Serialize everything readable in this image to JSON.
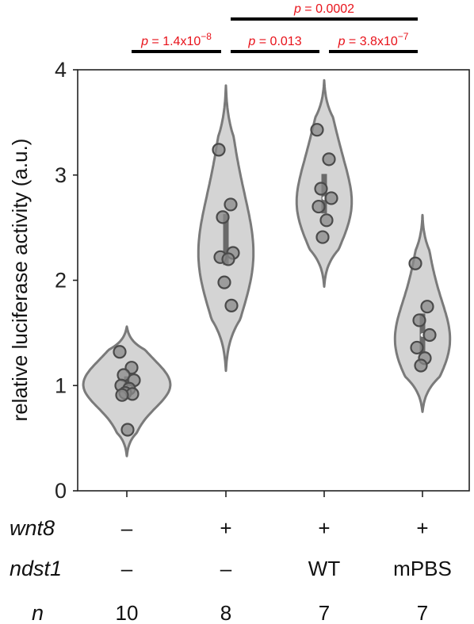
{
  "chart_data": {
    "type": "violin",
    "ylabel": "relative luciferase activity (a.u.)",
    "ylim": [
      0,
      4
    ],
    "yticks": [
      0,
      1,
      2,
      3,
      4
    ],
    "groups": [
      {
        "wnt8": "–",
        "ndst1": "–",
        "n": "10",
        "violin_range": [
          0.33,
          1.56
        ],
        "peak": 1.0,
        "points": [
          1.32,
          1.17,
          1.1,
          1.05,
          1.0,
          0.97,
          0.93,
          0.92,
          0.91,
          0.58
        ]
      },
      {
        "wnt8": "+",
        "ndst1": "–",
        "n": "8",
        "violin_range": [
          1.14,
          3.85
        ],
        "peak": 2.2,
        "points": [
          3.24,
          2.72,
          2.6,
          2.26,
          2.22,
          2.2,
          1.98,
          1.76
        ]
      },
      {
        "wnt8": "+",
        "ndst1": "WT",
        "n": "7",
        "violin_range": [
          1.94,
          3.9
        ],
        "peak": 2.75,
        "points": [
          3.43,
          3.15,
          2.87,
          2.78,
          2.7,
          2.57,
          2.41
        ]
      },
      {
        "wnt8": "+",
        "ndst1": "mPBS",
        "n": "7",
        "violin_range": [
          0.75,
          2.62
        ],
        "peak": 1.45,
        "points": [
          2.16,
          1.75,
          1.62,
          1.48,
          1.36,
          1.26,
          1.19
        ]
      }
    ],
    "comparisons": [
      {
        "from": 0,
        "to": 1,
        "label_prefix": "p",
        "label_value": " = 1.4x10",
        "label_exp": "−8"
      },
      {
        "from": 1,
        "to": 2,
        "label_prefix": "p",
        "label_value": " = 0.013",
        "label_exp": ""
      },
      {
        "from": 2,
        "to": 3,
        "label_prefix": "p",
        "label_value": " = 3.8x10",
        "label_exp": "−7"
      },
      {
        "from": 1,
        "to": 3,
        "label_prefix": "p",
        "label_value": " = 0.0002",
        "label_exp": ""
      }
    ],
    "row_labels": {
      "wnt8": "wnt8",
      "ndst1": "ndst1",
      "n": "n"
    },
    "colors": {
      "violin_fill": "#d4d4d4",
      "violin_stroke": "#7a7a7a",
      "point_fill": "#8a8a8a",
      "point_stroke": "#4a4a4a",
      "p_text": "#e8121a",
      "bracket": "#000000"
    }
  }
}
